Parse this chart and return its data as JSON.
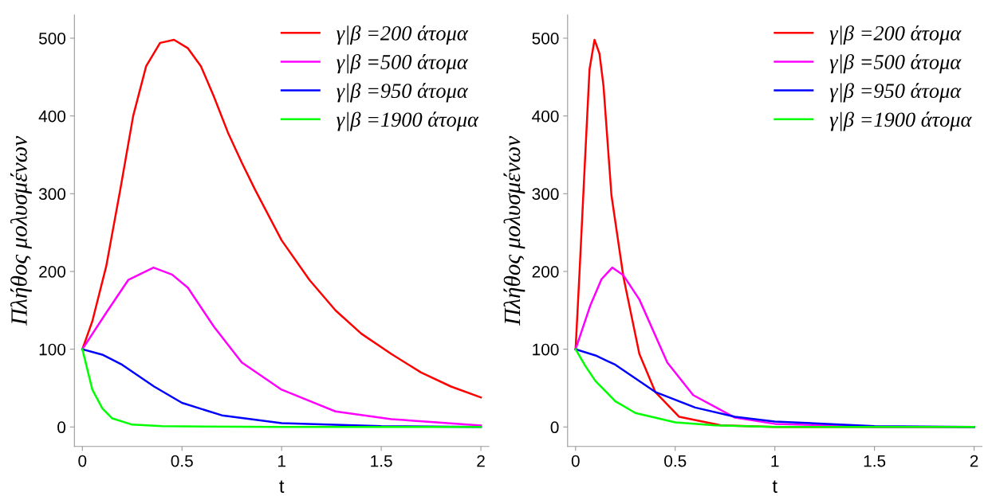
{
  "chart_data": [
    {
      "type": "line",
      "xlabel": "t",
      "ylabel": "Πλήθος μολυσμένων",
      "xlim": [
        -0.04,
        2.04
      ],
      "ylim": [
        -25,
        530
      ],
      "xticks": [
        0,
        0.5,
        1,
        1.5,
        2
      ],
      "yticks": [
        0,
        100,
        200,
        300,
        400,
        500
      ],
      "grid": false,
      "legend": "top right",
      "marker": "none",
      "line_style": "solid",
      "series": [
        {
          "name": "γ|β =200 άτομα",
          "color": "#ff0000",
          "x": [
            0,
            0.05,
            0.12,
            0.19,
            0.255,
            0.32,
            0.39,
            0.46,
            0.53,
            0.595,
            0.66,
            0.73,
            0.8,
            0.867,
            1.0,
            1.14,
            1.27,
            1.4,
            1.55,
            1.7,
            1.85,
            2.0
          ],
          "values": [
            100,
            136,
            207,
            305,
            400,
            464,
            494,
            498,
            487,
            464,
            425,
            379,
            340,
            305,
            240,
            189,
            150,
            120,
            94,
            70,
            52,
            38
          ]
        },
        {
          "name": "γ|β =500 άτομα",
          "color": "#ff00ff",
          "x": [
            0,
            0.12,
            0.23,
            0.357,
            0.45,
            0.53,
            0.66,
            0.8,
            1.0,
            1.27,
            1.55,
            2.0
          ],
          "values": [
            100,
            147,
            189,
            205,
            196,
            179,
            129,
            83,
            48,
            20,
            10,
            2
          ]
        },
        {
          "name": "γ|β =950 άτομα",
          "color": "#0000ff",
          "x": [
            0,
            0.1,
            0.2,
            0.36,
            0.5,
            0.7,
            1.0,
            1.5,
            2.0
          ],
          "values": [
            100,
            93,
            80,
            52,
            31,
            15,
            5,
            1,
            0
          ]
        },
        {
          "name": "γ|β =1900 άτομα",
          "color": "#00ff00",
          "x": [
            0,
            0.05,
            0.1,
            0.15,
            0.25,
            0.4,
            1.0,
            2.0
          ],
          "values": [
            100,
            48,
            24,
            11,
            3,
            1,
            0,
            0
          ]
        }
      ]
    },
    {
      "type": "line",
      "xlabel": "t",
      "ylabel": "Πλήθος μολυσμένων",
      "xlim": [
        -0.04,
        2.04
      ],
      "ylim": [
        -25,
        530
      ],
      "xticks": [
        0,
        0.5,
        1,
        1.5,
        2
      ],
      "yticks": [
        0,
        100,
        200,
        300,
        400,
        500
      ],
      "grid": false,
      "legend": "top right",
      "marker": "none",
      "line_style": "solid",
      "series": [
        {
          "name": "γ|β =200 άτομα",
          "color": "#ff0000",
          "x": [
            0,
            0.02,
            0.048,
            0.07,
            0.095,
            0.12,
            0.14,
            0.18,
            0.24,
            0.32,
            0.4,
            0.52,
            0.73,
            1.0,
            2.0
          ],
          "values": [
            100,
            200,
            347,
            460,
            498,
            480,
            439,
            298,
            193,
            94,
            45,
            13,
            2,
            0,
            0
          ]
        },
        {
          "name": "γ|β =500 άτομα",
          "color": "#ff00ff",
          "x": [
            0,
            0.075,
            0.13,
            0.184,
            0.24,
            0.32,
            0.46,
            0.59,
            0.8,
            1.0,
            1.5,
            2.0
          ],
          "values": [
            100,
            157,
            190,
            205,
            195,
            164,
            83,
            41,
            12,
            4,
            0,
            0
          ]
        },
        {
          "name": "γ|β =950 άτομα",
          "color": "#0000ff",
          "x": [
            0,
            0.1,
            0.2,
            0.4,
            0.6,
            0.8,
            1.0,
            1.5,
            2.0
          ],
          "values": [
            100,
            92,
            80,
            45,
            25,
            13,
            7,
            1,
            0
          ]
        },
        {
          "name": "γ|β =1900 άτομα",
          "color": "#00ff00",
          "x": [
            0,
            0.05,
            0.1,
            0.2,
            0.3,
            0.5,
            0.7,
            1.0,
            2.0
          ],
          "values": [
            100,
            78,
            59,
            33,
            18,
            6,
            2,
            0,
            0
          ]
        }
      ]
    }
  ]
}
